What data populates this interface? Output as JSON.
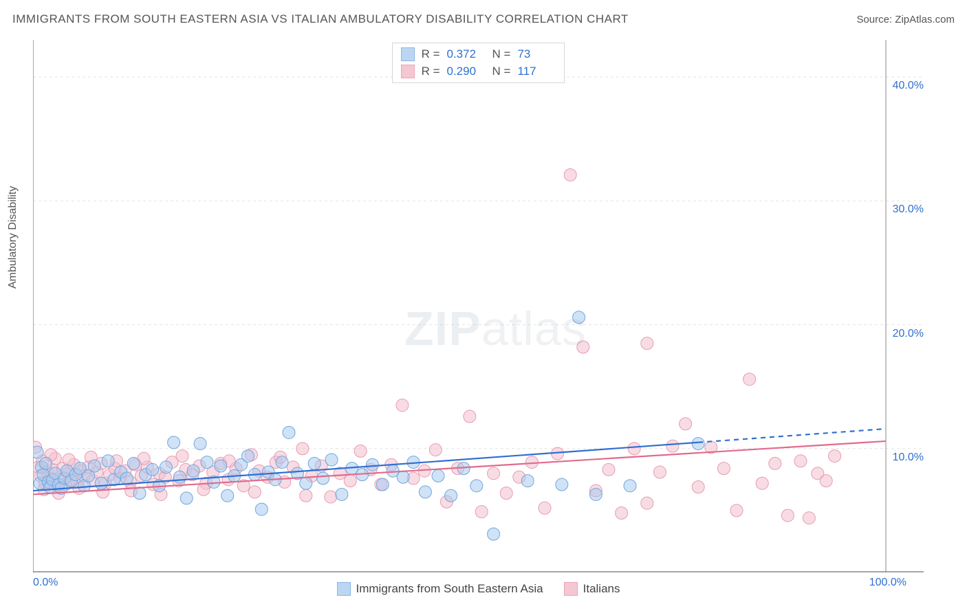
{
  "header": {
    "title": "IMMIGRANTS FROM SOUTH EASTERN ASIA VS ITALIAN AMBULATORY DISABILITY CORRELATION CHART",
    "source": "Source: ZipAtlas.com"
  },
  "y_axis_label": "Ambulatory Disability",
  "watermark": {
    "bold": "ZIP",
    "light": "atlas"
  },
  "chart": {
    "type": "scatter",
    "background_color": "#ffffff",
    "grid_color": "#e4e4e4",
    "axis_color": "#888888",
    "xlim": [
      0,
      100
    ],
    "ylim": [
      0,
      43
    ],
    "x_ticks": [
      0,
      100
    ],
    "x_tick_labels": [
      "0.0%",
      "100.0%"
    ],
    "y_ticks": [
      10,
      20,
      30,
      40
    ],
    "y_tick_labels": [
      "10.0%",
      "20.0%",
      "30.0%",
      "40.0%"
    ],
    "y_tick_grid": [
      0,
      10,
      20,
      30,
      40
    ],
    "marker_radius": 9,
    "marker_opacity": 0.55,
    "line_width": 2.2,
    "series": {
      "blue": {
        "label": "Immigrants from South Eastern Asia",
        "fill": "#a9cbef",
        "stroke": "#6fa6de",
        "line_color": "#2f6fd0",
        "line_dash_after": 78,
        "regression": {
          "x1": 0,
          "y1": 6.6,
          "x2": 100,
          "y2": 11.6
        },
        "R_label": "R =",
        "R": "0.372",
        "N_label": "N =",
        "N": "73",
        "points": [
          [
            0.5,
            9.7
          ],
          [
            0.8,
            7.2
          ],
          [
            1.0,
            8.5
          ],
          [
            1.2,
            7.9
          ],
          [
            1.5,
            8.8
          ],
          [
            1.8,
            7.3
          ],
          [
            2.0,
            6.9
          ],
          [
            2.3,
            7.5
          ],
          [
            2.6,
            8.0
          ],
          [
            3.0,
            7.1
          ],
          [
            3.3,
            6.8
          ],
          [
            3.7,
            7.6
          ],
          [
            4.0,
            8.2
          ],
          [
            4.5,
            7.4
          ],
          [
            5.0,
            7.9
          ],
          [
            5.5,
            8.4
          ],
          [
            6.0,
            7.0
          ],
          [
            6.5,
            7.8
          ],
          [
            7.2,
            8.6
          ],
          [
            8.0,
            7.2
          ],
          [
            8.8,
            9.0
          ],
          [
            9.5,
            7.5
          ],
          [
            10.3,
            8.1
          ],
          [
            11.0,
            7.6
          ],
          [
            11.8,
            8.8
          ],
          [
            12.5,
            6.4
          ],
          [
            13.2,
            7.9
          ],
          [
            14.0,
            8.3
          ],
          [
            14.8,
            7.0
          ],
          [
            15.6,
            8.5
          ],
          [
            16.5,
            10.5
          ],
          [
            17.2,
            7.7
          ],
          [
            18.0,
            6.0
          ],
          [
            18.8,
            8.2
          ],
          [
            19.6,
            10.4
          ],
          [
            20.4,
            8.9
          ],
          [
            21.2,
            7.3
          ],
          [
            22.0,
            8.6
          ],
          [
            22.8,
            6.2
          ],
          [
            23.6,
            7.8
          ],
          [
            24.4,
            8.7
          ],
          [
            25.2,
            9.4
          ],
          [
            26.0,
            7.9
          ],
          [
            26.8,
            5.1
          ],
          [
            27.6,
            8.1
          ],
          [
            28.4,
            7.5
          ],
          [
            29.2,
            8.9
          ],
          [
            30.0,
            11.3
          ],
          [
            31.0,
            8.0
          ],
          [
            32.0,
            7.2
          ],
          [
            33.0,
            8.8
          ],
          [
            34.0,
            7.6
          ],
          [
            35.0,
            9.1
          ],
          [
            36.2,
            6.3
          ],
          [
            37.4,
            8.4
          ],
          [
            38.6,
            7.9
          ],
          [
            39.8,
            8.7
          ],
          [
            41.0,
            7.1
          ],
          [
            42.2,
            8.2
          ],
          [
            43.4,
            7.7
          ],
          [
            44.6,
            8.9
          ],
          [
            46.0,
            6.5
          ],
          [
            47.5,
            7.8
          ],
          [
            49.0,
            6.2
          ],
          [
            50.5,
            8.4
          ],
          [
            52.0,
            7.0
          ],
          [
            54.0,
            3.1
          ],
          [
            58.0,
            7.4
          ],
          [
            62.0,
            7.1
          ],
          [
            64.0,
            20.6
          ],
          [
            66.0,
            6.3
          ],
          [
            70.0,
            7.0
          ],
          [
            78.0,
            10.4
          ]
        ]
      },
      "pink": {
        "label": "Italians",
        "fill": "#f2bfcd",
        "stroke": "#e79ab0",
        "line_color": "#e26a8c",
        "line_dash_after": 100,
        "regression": {
          "x1": 0,
          "y1": 6.3,
          "x2": 100,
          "y2": 10.6
        },
        "R_label": "R =",
        "R": "0.290",
        "N_label": "N =",
        "N": "117",
        "points": [
          [
            0.3,
            10.1
          ],
          [
            0.6,
            8.5
          ],
          [
            0.9,
            7.8
          ],
          [
            1.1,
            9.0
          ],
          [
            1.4,
            7.2
          ],
          [
            1.7,
            8.1
          ],
          [
            2.0,
            7.6
          ],
          [
            2.3,
            8.3
          ],
          [
            2.6,
            9.2
          ],
          [
            2.9,
            7.0
          ],
          [
            3.2,
            7.7
          ],
          [
            3.5,
            8.4
          ],
          [
            3.8,
            7.1
          ],
          [
            4.1,
            8.0
          ],
          [
            4.4,
            7.5
          ],
          [
            4.8,
            8.7
          ],
          [
            5.2,
            7.3
          ],
          [
            5.6,
            8.2
          ],
          [
            6.0,
            7.8
          ],
          [
            6.5,
            8.5
          ],
          [
            7.0,
            7.4
          ],
          [
            7.5,
            8.1
          ],
          [
            8.0,
            8.8
          ],
          [
            8.5,
            7.2
          ],
          [
            9.0,
            7.9
          ],
          [
            9.6,
            8.4
          ],
          [
            10.2,
            7.6
          ],
          [
            10.8,
            8.2
          ],
          [
            11.4,
            7.3
          ],
          [
            12.0,
            8.7
          ],
          [
            12.7,
            7.8
          ],
          [
            13.4,
            8.5
          ],
          [
            14.1,
            7.1
          ],
          [
            14.8,
            8.0
          ],
          [
            15.5,
            7.7
          ],
          [
            16.3,
            8.9
          ],
          [
            17.1,
            7.4
          ],
          [
            17.9,
            8.3
          ],
          [
            18.7,
            7.9
          ],
          [
            19.5,
            8.6
          ],
          [
            20.3,
            7.2
          ],
          [
            21.1,
            8.1
          ],
          [
            22.0,
            8.8
          ],
          [
            22.9,
            7.5
          ],
          [
            23.8,
            8.4
          ],
          [
            24.7,
            7.0
          ],
          [
            25.6,
            9.5
          ],
          [
            26.5,
            8.2
          ],
          [
            27.5,
            7.7
          ],
          [
            28.5,
            8.9
          ],
          [
            29.5,
            7.3
          ],
          [
            30.5,
            8.5
          ],
          [
            31.6,
            10.0
          ],
          [
            32.7,
            7.8
          ],
          [
            33.8,
            8.6
          ],
          [
            34.9,
            6.1
          ],
          [
            36.0,
            8.0
          ],
          [
            37.2,
            7.4
          ],
          [
            38.4,
            9.8
          ],
          [
            39.6,
            8.3
          ],
          [
            40.8,
            7.1
          ],
          [
            42.0,
            8.7
          ],
          [
            43.3,
            13.5
          ],
          [
            44.6,
            7.6
          ],
          [
            45.9,
            8.2
          ],
          [
            47.2,
            9.9
          ],
          [
            48.5,
            5.7
          ],
          [
            49.8,
            8.4
          ],
          [
            51.2,
            12.6
          ],
          [
            52.6,
            4.9
          ],
          [
            54.0,
            8.0
          ],
          [
            55.5,
            6.4
          ],
          [
            57.0,
            7.7
          ],
          [
            58.5,
            8.9
          ],
          [
            60.0,
            5.2
          ],
          [
            61.5,
            9.6
          ],
          [
            63.0,
            32.1
          ],
          [
            64.5,
            18.2
          ],
          [
            66.0,
            6.6
          ],
          [
            67.5,
            8.3
          ],
          [
            69.0,
            4.8
          ],
          [
            70.5,
            10.0
          ],
          [
            72.0,
            5.6
          ],
          [
            72.0,
            18.5
          ],
          [
            73.5,
            8.1
          ],
          [
            75.0,
            10.2
          ],
          [
            76.5,
            12.0
          ],
          [
            78.0,
            6.9
          ],
          [
            79.5,
            10.1
          ],
          [
            81.0,
            8.4
          ],
          [
            82.5,
            5.0
          ],
          [
            84.0,
            15.6
          ],
          [
            85.5,
            7.2
          ],
          [
            87.0,
            8.8
          ],
          [
            88.5,
            4.6
          ],
          [
            90.0,
            9.0
          ],
          [
            91.0,
            4.4
          ],
          [
            92.0,
            8.0
          ],
          [
            93.0,
            7.4
          ],
          [
            94.0,
            9.4
          ],
          [
            1.3,
            6.7
          ],
          [
            2.1,
            9.5
          ],
          [
            3.0,
            6.4
          ],
          [
            4.2,
            9.1
          ],
          [
            5.4,
            6.8
          ],
          [
            6.8,
            9.3
          ],
          [
            8.2,
            6.5
          ],
          [
            9.8,
            9.0
          ],
          [
            11.5,
            6.6
          ],
          [
            13.0,
            9.2
          ],
          [
            15.0,
            6.3
          ],
          [
            17.5,
            9.4
          ],
          [
            20.0,
            6.7
          ],
          [
            23.0,
            9.0
          ],
          [
            26.0,
            6.5
          ],
          [
            29.0,
            9.3
          ],
          [
            32.0,
            6.2
          ]
        ]
      }
    }
  },
  "legend_bottom": {
    "blue_label": "Immigrants from South Eastern Asia",
    "pink_label": "Italians"
  }
}
